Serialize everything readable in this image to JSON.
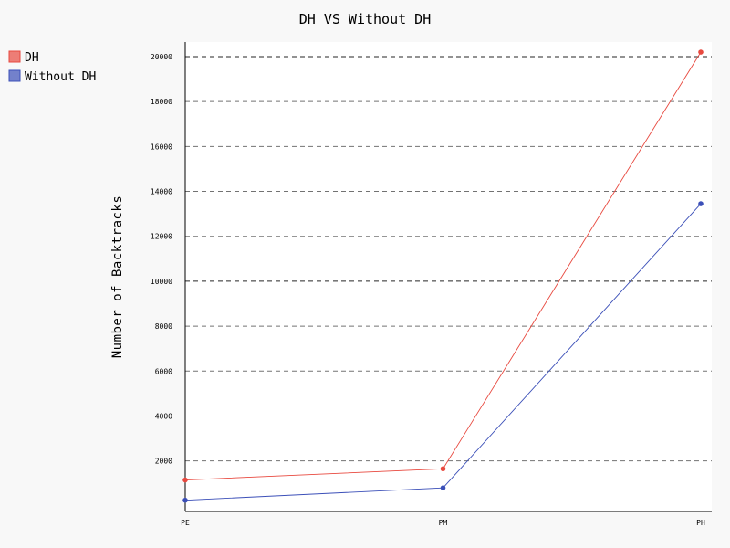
{
  "chart_data": {
    "type": "line",
    "title": "DH VS Without DH",
    "xlabel": "",
    "ylabel": "Number of Backtracks",
    "categories": [
      "PE",
      "PM",
      "PH"
    ],
    "series": [
      {
        "name": "DH",
        "values": [
          1150,
          1650,
          20200
        ],
        "color": "#e8493f"
      },
      {
        "name": "Without DH",
        "values": [
          250,
          800,
          13450
        ],
        "color": "#3b4fb8"
      }
    ],
    "y_ticks": [
      2000,
      4000,
      6000,
      8000,
      10000,
      12000,
      14000,
      16000,
      18000,
      20000
    ],
    "major_ticks": [
      10000,
      20000
    ],
    "ylim": [
      -250,
      20650
    ],
    "grid": true,
    "legend_position": "top-left"
  }
}
